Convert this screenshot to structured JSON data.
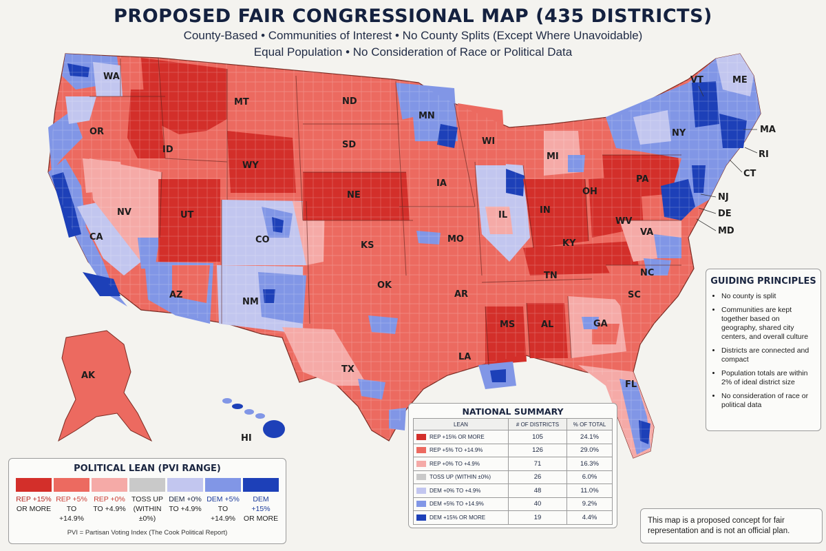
{
  "title": "PROPOSED FAIR CONGRESSIONAL MAP (435 DISTRICTS)",
  "subtitle1": "County-Based • Communities of Interest • No County Splits (Except Where Unavoidable)",
  "subtitle2": "Equal Population • No Consideration of Race or Political Data",
  "colors": {
    "rep15": "#d32f2a",
    "rep5": "#ec6a60",
    "rep0": "#f5aaa7",
    "toss": "#c9c9c9",
    "dem0": "#c2c6ef",
    "dem5": "#8196e6",
    "dem15": "#1d40b8",
    "background": "#f4f3ef"
  },
  "state_labels": {
    "WA": "WA",
    "OR": "OR",
    "CA": "CA",
    "NV": "NV",
    "ID": "ID",
    "MT": "MT",
    "WY": "WY",
    "UT": "UT",
    "AZ": "AZ",
    "CO": "CO",
    "NM": "NM",
    "ND": "ND",
    "SD": "SD",
    "NE": "NE",
    "KS": "KS",
    "OK": "OK",
    "TX": "TX",
    "MN": "MN",
    "IA": "IA",
    "MO": "MO",
    "AR": "AR",
    "LA": "LA",
    "WI": "WI",
    "IL": "IL",
    "MI": "MI",
    "IN": "IN",
    "OH": "OH",
    "KY": "KY",
    "TN": "TN",
    "MS": "MS",
    "AL": "AL",
    "GA": "GA",
    "FL": "FL",
    "SC": "SC",
    "NC": "NC",
    "VA": "VA",
    "WV": "WV",
    "PA": "PA",
    "NY": "NY",
    "VT": "VT",
    "ME": "ME",
    "MA": "MA",
    "RI": "RI",
    "CT": "CT",
    "NJ": "NJ",
    "DE": "DE",
    "MD": "MD",
    "AK": "AK",
    "HI": "HI"
  },
  "principles": {
    "heading": "GUIDING PRINCIPLES",
    "items": [
      "No county is split",
      "Communities are kept together based on geography, shared city centers, and overall culture",
      "Districts are connected and compact",
      "Population totals are within 2% of ideal district size",
      "No consideration of race or political data"
    ]
  },
  "summary": {
    "heading": "NATIONAL SUMMARY",
    "columns": [
      "LEAN",
      "# OF DISTRICTS",
      "% OF TOTAL"
    ],
    "rows": [
      {
        "lean": "REP +15% OR MORE",
        "districts": "105",
        "percent": "24.1%"
      },
      {
        "lean": "REP +5% TO +14.9%",
        "districts": "126",
        "percent": "29.0%"
      },
      {
        "lean": "REP +0% TO +4.9%",
        "districts": "71",
        "percent": "16.3%"
      },
      {
        "lean": "TOSS UP (WITHIN ±0%)",
        "districts": "26",
        "percent": "6.0%"
      },
      {
        "lean": "DEM +0% TO +4.9%",
        "districts": "48",
        "percent": "11.0%"
      },
      {
        "lean": "DEM +5% TO +14.9%",
        "districts": "40",
        "percent": "9.2%"
      },
      {
        "lean": "DEM +15% OR MORE",
        "districts": "19",
        "percent": "4.4%"
      }
    ]
  },
  "legend": {
    "heading": "POLITICAL LEAN (PVI RANGE)",
    "items": [
      {
        "line1": "REP +15%",
        "line2": "OR MORE"
      },
      {
        "line1": "REP +5%",
        "line2": "TO +14.9%"
      },
      {
        "line1": "REP +0%",
        "line2": "TO +4.9%"
      },
      {
        "line1": "TOSS UP",
        "line2": "(WITHIN ±0%)"
      },
      {
        "line1": "DEM +0%",
        "line2": "TO +4.9%"
      },
      {
        "line1": "DEM +5%",
        "line2": "TO +14.9%"
      },
      {
        "line1": "DEM +15%",
        "line2": "OR MORE"
      }
    ],
    "note": "PVI = Partisan Voting Index (The Cook Political Report)"
  },
  "disclaimer": "This map is a proposed concept for fair representation and is not an official plan."
}
